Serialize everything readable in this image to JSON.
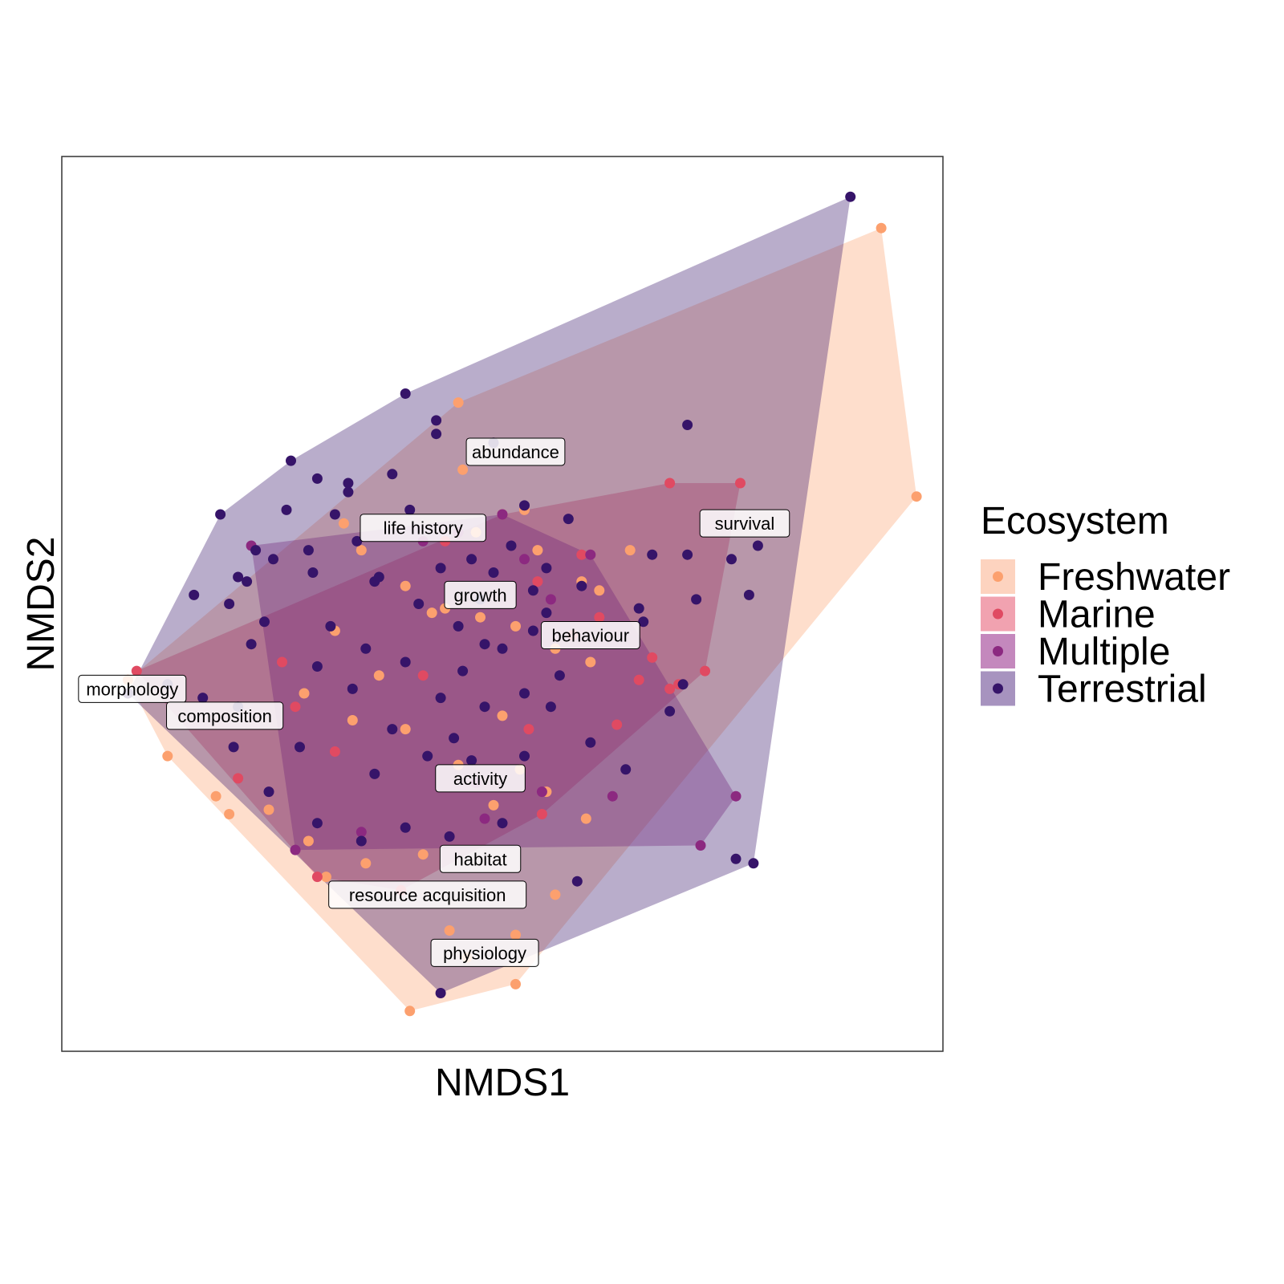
{
  "chart_data": {
    "type": "scatter",
    "title": "",
    "xlabel": "NMDS1",
    "ylabel": "NMDS2",
    "xlim": [
      -1.0,
      1.0
    ],
    "ylim": [
      -1.0,
      1.0
    ],
    "grid": false,
    "legend": {
      "title": "Ecosystem",
      "position": "right"
    },
    "series": [
      {
        "name": "Freshwater",
        "color": "#FCA06E",
        "hull_color": "#FDD3BF",
        "points": [
          [
            0.86,
            0.84
          ],
          [
            0.94,
            0.24
          ],
          [
            -0.85,
            -0.17
          ],
          [
            -0.21,
            -0.91
          ],
          [
            -0.1,
            0.45
          ],
          [
            -0.09,
            0.3
          ],
          [
            0.05,
            0.21
          ],
          [
            0.29,
            0.12
          ],
          [
            0.18,
            0.05
          ],
          [
            -0.36,
            0.18
          ],
          [
            -0.32,
            0.12
          ],
          [
            -0.22,
            0.04
          ],
          [
            -0.16,
            -0.02
          ],
          [
            -0.05,
            -0.03
          ],
          [
            0.03,
            -0.05
          ],
          [
            0.12,
            -0.1
          ],
          [
            0.2,
            -0.13
          ],
          [
            -0.45,
            -0.2
          ],
          [
            -0.34,
            -0.26
          ],
          [
            -0.22,
            -0.28
          ],
          [
            -0.1,
            -0.36
          ],
          [
            -0.02,
            -0.45
          ],
          [
            0.1,
            -0.42
          ],
          [
            -0.76,
            -0.34
          ],
          [
            -0.65,
            -0.43
          ],
          [
            -0.53,
            -0.46
          ],
          [
            -0.44,
            -0.53
          ],
          [
            -0.31,
            -0.58
          ],
          [
            -0.18,
            -0.56
          ],
          [
            -0.12,
            -0.73
          ],
          [
            -0.08,
            -0.79
          ],
          [
            0.03,
            -0.74
          ],
          [
            0.12,
            -0.65
          ],
          [
            0.19,
            -0.48
          ],
          [
            0.22,
            0.03
          ],
          [
            0.08,
            0.12
          ],
          [
            -0.06,
            0.16
          ],
          [
            -0.13,
            -0.01
          ],
          [
            0.0,
            -0.25
          ],
          [
            -0.28,
            -0.16
          ],
          [
            -0.62,
            -0.47
          ],
          [
            -0.4,
            -0.61
          ],
          [
            0.04,
            -0.37
          ],
          [
            0.03,
            -0.85
          ],
          [
            -0.38,
            -0.06
          ]
        ]
      },
      {
        "name": "Marine",
        "color": "#E04A62",
        "hull_color": "#F1A2B0",
        "points": [
          [
            -0.83,
            -0.15
          ],
          [
            0.38,
            0.27
          ],
          [
            0.54,
            0.27
          ],
          [
            0.46,
            -0.15
          ],
          [
            0.38,
            -0.19
          ],
          [
            -0.47,
            -0.23
          ],
          [
            -0.6,
            -0.39
          ],
          [
            0.18,
            0.11
          ],
          [
            0.08,
            0.05
          ],
          [
            0.0,
            0.2
          ],
          [
            -0.13,
            0.14
          ],
          [
            0.16,
            -0.07
          ],
          [
            0.31,
            -0.17
          ],
          [
            0.26,
            -0.27
          ],
          [
            0.06,
            -0.28
          ],
          [
            -0.18,
            -0.16
          ],
          [
            -0.38,
            -0.33
          ],
          [
            -0.42,
            -0.61
          ],
          [
            -0.23,
            -0.64
          ],
          [
            0.09,
            -0.47
          ],
          [
            0.4,
            -0.18
          ],
          [
            0.22,
            -0.03
          ],
          [
            -0.5,
            -0.13
          ],
          [
            0.34,
            -0.12
          ]
        ]
      },
      {
        "name": "Multiple",
        "color": "#8C2980",
        "hull_color": "#C488BD",
        "points": [
          [
            0.53,
            -0.43
          ],
          [
            0.0,
            0.2
          ],
          [
            -0.18,
            0.14
          ],
          [
            0.2,
            0.11
          ],
          [
            0.11,
            0.01
          ],
          [
            -0.1,
            0.16
          ],
          [
            -0.32,
            -0.51
          ],
          [
            0.45,
            -0.54
          ],
          [
            -0.04,
            -0.48
          ],
          [
            0.25,
            -0.43
          ],
          [
            -0.06,
            -0.4
          ],
          [
            0.09,
            -0.42
          ],
          [
            -0.47,
            -0.55
          ],
          [
            -0.57,
            0.13
          ],
          [
            0.05,
            0.1
          ]
        ]
      },
      {
        "name": "Terrestrial",
        "color": "#361469",
        "hull_color": "#A793BF",
        "points": [
          [
            0.79,
            0.91
          ],
          [
            -0.48,
            0.32
          ],
          [
            -0.85,
            -0.2
          ],
          [
            -0.14,
            -0.87
          ],
          [
            0.53,
            -0.57
          ],
          [
            0.42,
            0.4
          ],
          [
            -0.42,
            0.28
          ],
          [
            -0.35,
            0.27
          ],
          [
            -0.49,
            0.21
          ],
          [
            -0.52,
            0.1
          ],
          [
            -0.62,
            0.0
          ],
          [
            -0.57,
            -0.09
          ],
          [
            -0.15,
            0.41
          ],
          [
            -0.15,
            0.38
          ],
          [
            -0.25,
            0.29
          ],
          [
            -0.07,
            0.1
          ],
          [
            0.05,
            0.22
          ],
          [
            -0.43,
            0.07
          ],
          [
            -0.29,
            0.05
          ],
          [
            -0.19,
            0.0
          ],
          [
            -0.1,
            -0.05
          ],
          [
            0.0,
            -0.1
          ],
          [
            0.1,
            -0.02
          ],
          [
            0.18,
            0.04
          ],
          [
            -0.42,
            -0.14
          ],
          [
            -0.34,
            -0.19
          ],
          [
            -0.22,
            -0.13
          ],
          [
            -0.14,
            -0.21
          ],
          [
            -0.04,
            -0.23
          ],
          [
            0.05,
            -0.2
          ],
          [
            0.13,
            -0.16
          ],
          [
            -0.61,
            -0.32
          ],
          [
            -0.53,
            -0.42
          ],
          [
            -0.42,
            -0.49
          ],
          [
            -0.32,
            -0.53
          ],
          [
            -0.22,
            -0.5
          ],
          [
            -0.12,
            -0.52
          ],
          [
            0.0,
            -0.49
          ],
          [
            0.05,
            -0.34
          ],
          [
            -0.11,
            -0.3
          ],
          [
            -0.29,
            -0.38
          ],
          [
            0.32,
            -0.04
          ],
          [
            0.42,
            0.11
          ],
          [
            0.44,
            0.01
          ],
          [
            0.52,
            0.1
          ],
          [
            0.56,
            0.02
          ],
          [
            0.41,
            -0.18
          ],
          [
            0.28,
            -0.37
          ],
          [
            0.2,
            -0.31
          ],
          [
            0.38,
            -0.24
          ],
          [
            -0.68,
            -0.21
          ],
          [
            -0.7,
            0.02
          ],
          [
            -0.76,
            -0.18
          ],
          [
            -0.28,
            0.06
          ],
          [
            -0.33,
            0.14
          ],
          [
            -0.21,
            0.21
          ],
          [
            -0.14,
            0.08
          ],
          [
            -0.05,
            0.01
          ],
          [
            -0.09,
            -0.15
          ],
          [
            -0.02,
            0.07
          ],
          [
            0.1,
            0.08
          ],
          [
            0.07,
            -0.06
          ],
          [
            0.11,
            -0.23
          ],
          [
            -0.25,
            -0.28
          ],
          [
            -0.17,
            -0.34
          ],
          [
            -0.07,
            -0.35
          ],
          [
            -0.04,
            -0.09
          ],
          [
            -0.44,
            0.12
          ],
          [
            -0.54,
            -0.04
          ],
          [
            -0.6,
            -0.23
          ],
          [
            -0.58,
            0.05
          ],
          [
            -0.39,
            -0.05
          ],
          [
            -0.31,
            -0.1
          ],
          [
            -0.46,
            -0.32
          ],
          [
            -0.38,
            0.2
          ],
          [
            -0.56,
            0.12
          ],
          [
            -0.64,
            0.2
          ],
          [
            0.15,
            0.19
          ],
          [
            0.31,
            -0.01
          ],
          [
            0.58,
            0.13
          ],
          [
            0.34,
            0.11
          ],
          [
            -0.02,
            0.36
          ],
          [
            -0.22,
            0.47
          ],
          [
            0.02,
            0.13
          ],
          [
            0.07,
            0.03
          ],
          [
            -0.35,
            0.25
          ],
          [
            -0.6,
            0.06
          ],
          [
            0.57,
            -0.58
          ],
          [
            0.17,
            -0.62
          ]
        ]
      }
    ],
    "annotations": [
      {
        "text": "abundance",
        "x": 0.03,
        "y": 0.34
      },
      {
        "text": "life history",
        "x": -0.18,
        "y": 0.17
      },
      {
        "text": "survival",
        "x": 0.55,
        "y": 0.18
      },
      {
        "text": "growth",
        "x": -0.05,
        "y": 0.02
      },
      {
        "text": "behaviour",
        "x": 0.2,
        "y": -0.07
      },
      {
        "text": "morphology",
        "x": -0.84,
        "y": -0.19
      },
      {
        "text": "composition",
        "x": -0.63,
        "y": -0.25
      },
      {
        "text": "activity",
        "x": -0.05,
        "y": -0.39
      },
      {
        "text": "habitat",
        "x": -0.05,
        "y": -0.57
      },
      {
        "text": "resource acquisition",
        "x": -0.17,
        "y": -0.65
      },
      {
        "text": "physiology",
        "x": -0.04,
        "y": -0.78
      }
    ]
  }
}
